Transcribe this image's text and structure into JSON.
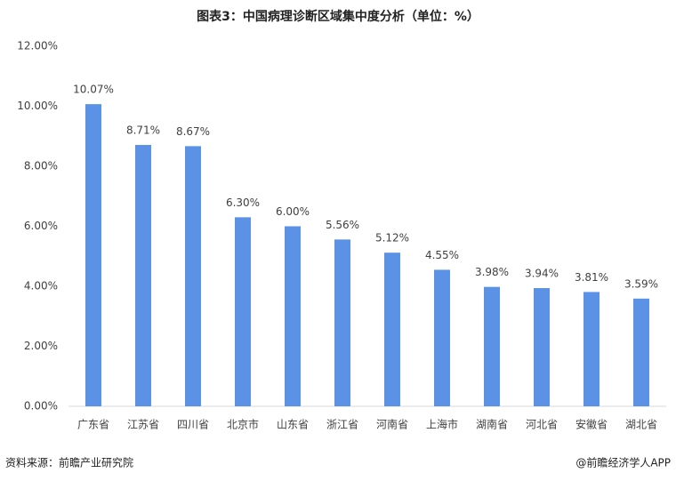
{
  "chart_data": {
    "type": "bar",
    "title": "图表3：中国病理诊断区域集中度分析（单位：%）",
    "categories": [
      "广东省",
      "江苏省",
      "四川省",
      "北京市",
      "山东省",
      "浙江省",
      "河南省",
      "上海市",
      "湖南省",
      "河北省",
      "安徽省",
      "湖北省"
    ],
    "values": [
      10.07,
      8.71,
      8.67,
      6.3,
      6.0,
      5.56,
      5.12,
      4.55,
      3.98,
      3.94,
      3.81,
      3.59
    ],
    "value_labels": [
      "10.07%",
      "8.71%",
      "8.67%",
      "6.30%",
      "6.00%",
      "5.56%",
      "5.12%",
      "4.55%",
      "3.98%",
      "3.94%",
      "3.81%",
      "3.59%"
    ],
    "color": "#5b92e5",
    "ylim": [
      0,
      12
    ],
    "yticks": [
      {
        "value": 0,
        "label": "0.00%"
      },
      {
        "value": 2,
        "label": "2.00%"
      },
      {
        "value": 4,
        "label": "4.00%"
      },
      {
        "value": 6,
        "label": "6.00%"
      },
      {
        "value": 8,
        "label": "8.00%"
      },
      {
        "value": 10,
        "label": "10.00%"
      },
      {
        "value": 12,
        "label": "12.00%"
      }
    ],
    "grid": false,
    "source": "资料来源：前瞻产业研究院",
    "credit": "@前瞻经济学人APP"
  }
}
